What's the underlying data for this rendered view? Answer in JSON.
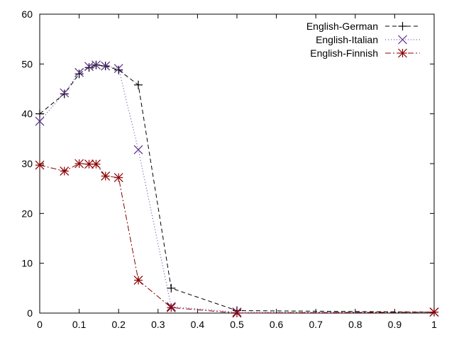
{
  "chart_data": {
    "type": "line",
    "xlim": [
      0,
      1
    ],
    "ylim": [
      0,
      60
    ],
    "xticks": [
      "0",
      "0.1",
      "0.2",
      "0.3",
      "0.4",
      "0.5",
      "0.6",
      "0.7",
      "0.8",
      "0.9",
      "1"
    ],
    "yticks": [
      "0",
      "10",
      "20",
      "30",
      "40",
      "50",
      "60"
    ],
    "grid": false,
    "legend_position": "top-right",
    "series": [
      {
        "name": "English-German",
        "color": "#000000",
        "marker": "plus",
        "line_style": "dashed",
        "x": [
          0,
          0.0625,
          0.1,
          0.125,
          0.1429,
          0.1667,
          0.2,
          0.25,
          0.3333,
          0.5,
          1
        ],
        "y": [
          40,
          44,
          48,
          49.3,
          49.8,
          49.6,
          48.8,
          45.8,
          5,
          0.5,
          0.2
        ]
      },
      {
        "name": "English-Italian",
        "color": "#5b2d8e",
        "marker": "cross",
        "line_style": "dotted",
        "x": [
          0,
          0.0625,
          0.1,
          0.125,
          0.1429,
          0.1667,
          0.2,
          0.25,
          0.3333,
          0.5,
          1
        ],
        "y": [
          38.5,
          44.2,
          48.3,
          49.5,
          49.8,
          49.6,
          49.1,
          32.8,
          1.3,
          0.2,
          0.2
        ]
      },
      {
        "name": "English-Finnish",
        "color": "#8b0000",
        "marker": "star",
        "line_style": "dashdot",
        "x": [
          0,
          0.0625,
          0.1,
          0.125,
          0.1429,
          0.1667,
          0.2,
          0.25,
          0.3333,
          0.5,
          1
        ],
        "y": [
          29.7,
          28.5,
          30,
          29.9,
          29.9,
          27.5,
          27.2,
          6.6,
          1.1,
          0,
          0.2
        ]
      }
    ]
  }
}
